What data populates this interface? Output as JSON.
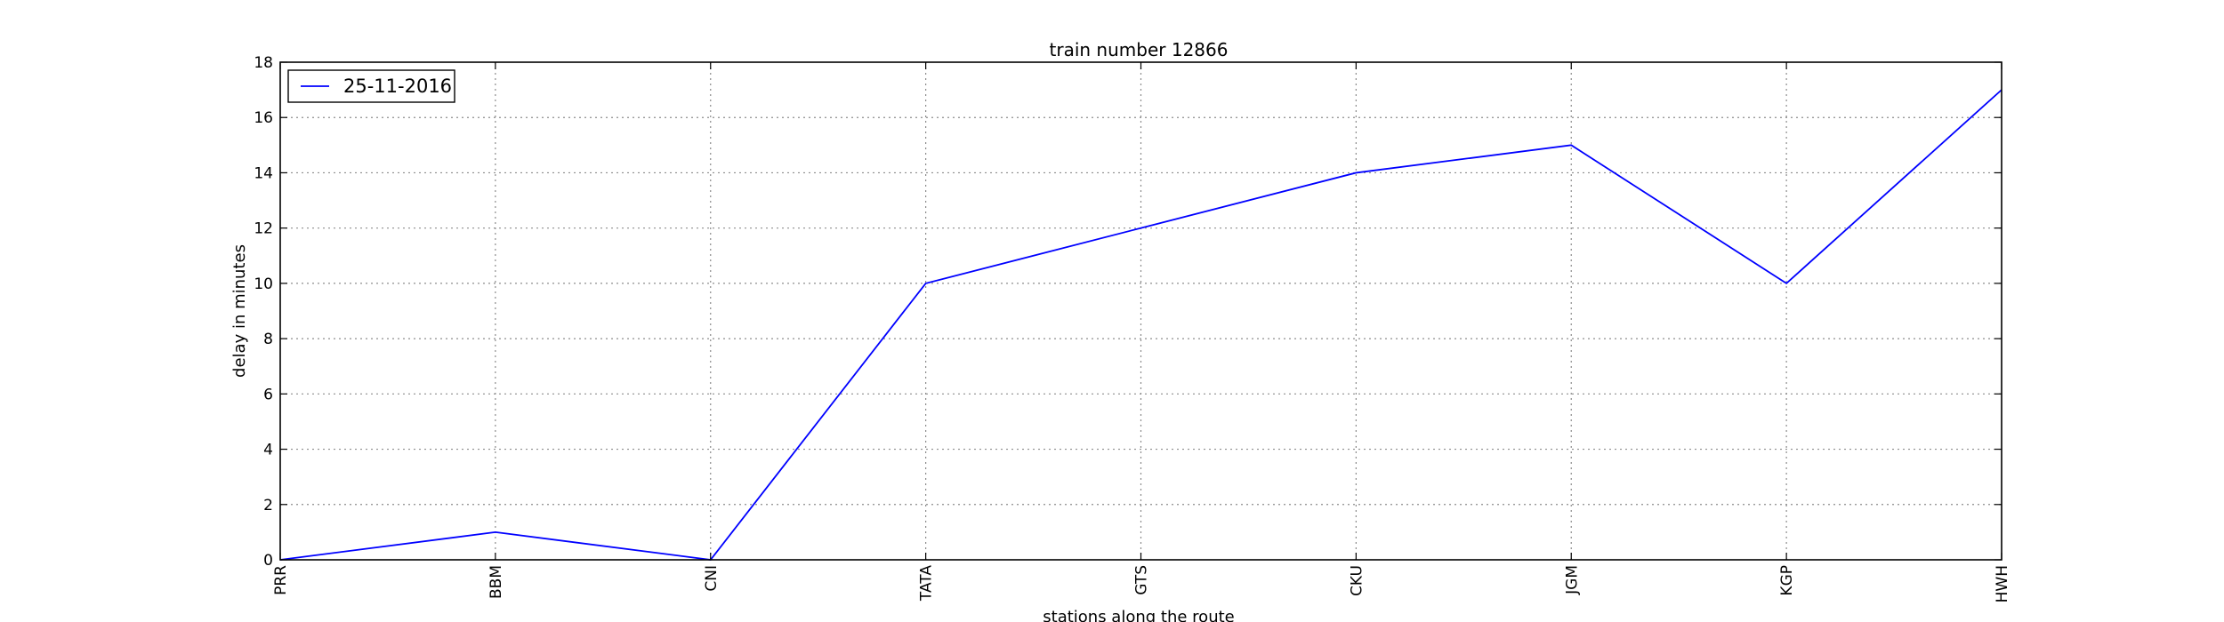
{
  "chart_data": {
    "type": "line",
    "title": "train number 12866",
    "xlabel": "stations along the route",
    "ylabel": "delay in minutes",
    "categories": [
      "PRR",
      "BBM",
      "CNI",
      "TATA",
      "GTS",
      "CKU",
      "JGM",
      "KGP",
      "HWH"
    ],
    "series": [
      {
        "name": "25-11-2016",
        "color": "#0000ff",
        "values": [
          0,
          1,
          0,
          10,
          12,
          14,
          15,
          10,
          17
        ]
      }
    ],
    "ylim": [
      0,
      18
    ],
    "yticks": [
      "0",
      "2",
      "4",
      "6",
      "8",
      "10",
      "12",
      "14",
      "16",
      "18"
    ],
    "grid": true,
    "legend_position": "top-left",
    "x_tick_rotation": "vertical"
  }
}
